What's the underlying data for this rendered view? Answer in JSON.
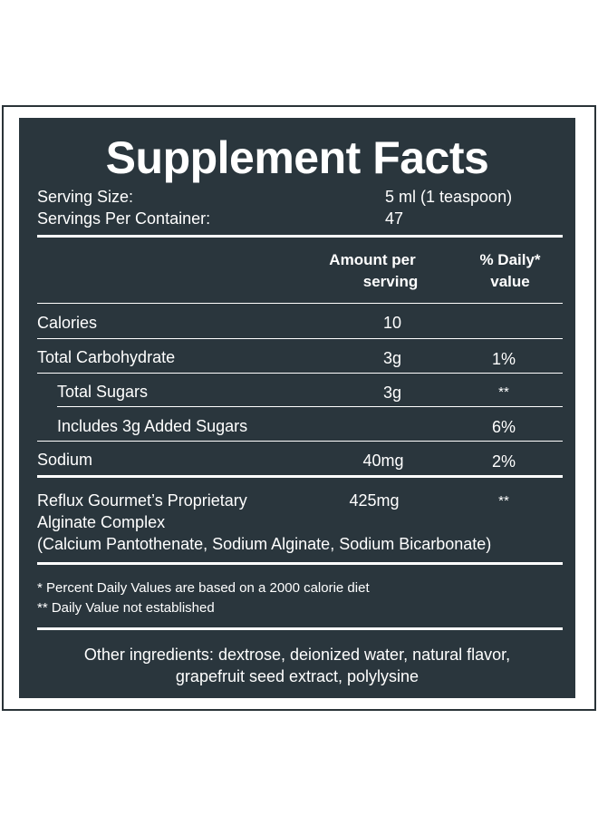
{
  "title": "Supplement Facts",
  "serving": {
    "size_label": "Serving Size:",
    "size_value": "5 ml (1 teaspoon)",
    "per_container_label": "Servings Per Container:",
    "per_container_value": "47"
  },
  "columns": {
    "amount_line1": "Amount per",
    "amount_line2": "serving",
    "dv_line1": "% Daily*",
    "dv_line2": "value"
  },
  "rows": [
    {
      "label": "Calories",
      "amount": "10",
      "dv": ""
    },
    {
      "label": "Total Carbohydrate",
      "amount": "3g",
      "dv": "1%"
    },
    {
      "label": "Total Sugars",
      "amount": "3g",
      "dv": "**"
    },
    {
      "label": "Includes 3g Added Sugars",
      "amount": "",
      "dv": "6%"
    },
    {
      "label": "Sodium",
      "amount": "40mg",
      "dv": "2%"
    }
  ],
  "proprietary": {
    "line1": "Reflux Gourmet’s Proprietary",
    "line2": "Alginate Complex",
    "line3": "(Calcium Pantothenate, Sodium Alginate, Sodium Bicarbonate)",
    "amount": "425mg",
    "dv": "**"
  },
  "footnotes": {
    "line1": "* Percent Daily Values are based on a 2000 calorie diet",
    "line2": "** Daily Value not established"
  },
  "other_ingredients": {
    "line1": "Other ingredients: dextrose, deionized water, natural flavor,",
    "line2": "grapefruit seed extract, polylysine"
  },
  "colors": {
    "panel": "#2a363d",
    "text": "#ffffff"
  }
}
